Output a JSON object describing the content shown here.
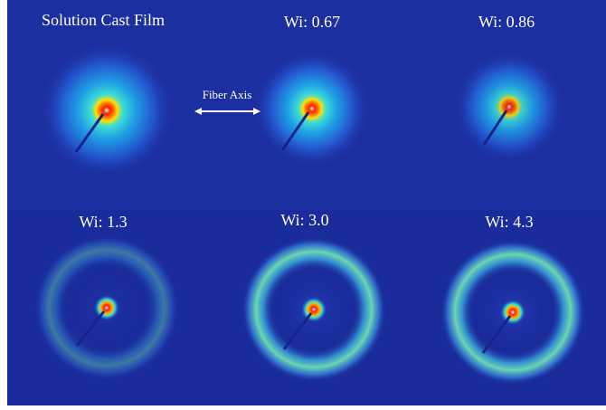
{
  "panels": [
    {
      "label": "Solution Cast Film"
    },
    {
      "label": "Wi: 0.67"
    },
    {
      "label": "Wi: 0.86"
    },
    {
      "label": "Wi: 1.3"
    },
    {
      "label": "Wi: 3.0"
    },
    {
      "label": "Wi: 4.3"
    }
  ],
  "annotation": {
    "text": "Fiber Axis"
  }
}
